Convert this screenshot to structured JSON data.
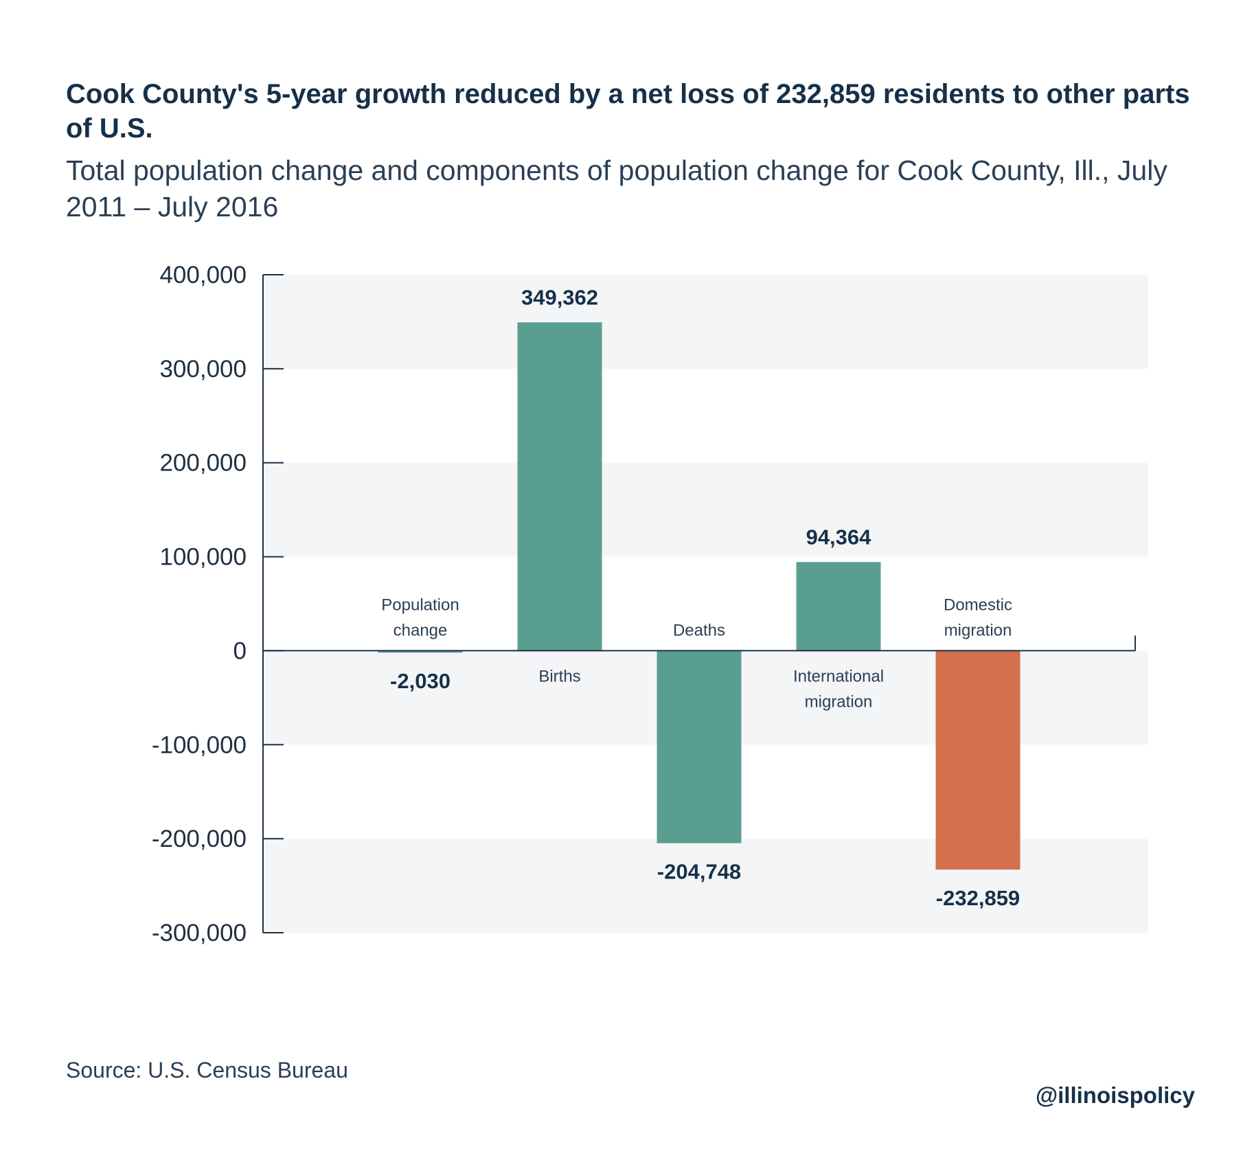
{
  "title": "Cook County's 5-year growth reduced by a net loss of 232,859 residents to other parts of U.S.",
  "subtitle": "Total population change and components of population change for Cook County, Ill., July 2011 – July 2016",
  "source": "Source: U.S. Census Bureau",
  "handle": "@illinoispolicy",
  "colors": {
    "teal": "#5a9e92",
    "orange": "#d4704e",
    "band": "#f4f5f7",
    "text": "#1b3147"
  },
  "chart_data": {
    "type": "bar",
    "categories": [
      [
        "Population",
        "change"
      ],
      [
        "Births"
      ],
      [
        "Deaths"
      ],
      [
        "International",
        "migration"
      ],
      [
        "Domestic",
        "migration"
      ]
    ],
    "values": [
      -2030,
      349362,
      -204748,
      94364,
      -232859
    ],
    "value_labels": [
      "-2,030",
      "349,362",
      "-204,748",
      "94,364",
      "-232,859"
    ],
    "highlight_index": 4,
    "ylim": [
      -300000,
      400000
    ],
    "yticks": [
      400000,
      300000,
      200000,
      100000,
      0,
      -100000,
      -200000,
      -300000
    ],
    "ytick_labels": [
      "400,000",
      "300,000",
      "200,000",
      "100,000",
      "0",
      "-100,000",
      "-200,000",
      "-300,000"
    ],
    "grid": "alternating bands"
  }
}
